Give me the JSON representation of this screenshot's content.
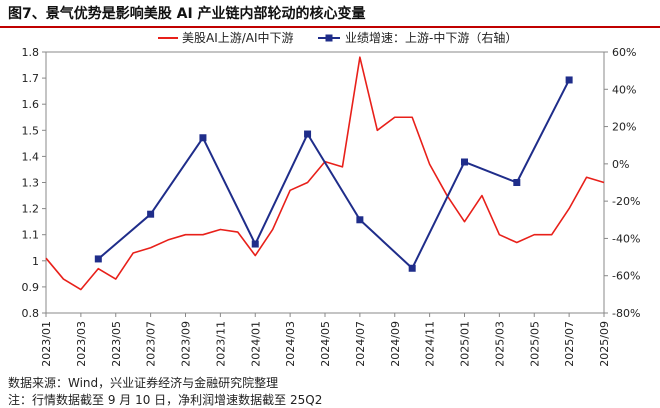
{
  "title": "图7、景气优势是影响美股 AI 产业链内部轮动的核心变量",
  "footer": {
    "source": "数据来源：Wind，兴业证券经济与金融研究院整理",
    "note": "注：行情数据截至 9 月 10 日，净利润增速数据截至 25Q2"
  },
  "colors": {
    "line": "#e8201a",
    "series2": "#1f2d8a",
    "title_rule": "#c00000"
  },
  "chart_data": {
    "type": "line",
    "x_tick_labels": [
      "2023/01",
      "2023/03",
      "2023/05",
      "2023/07",
      "2023/09",
      "2023/11",
      "2024/01",
      "2024/03",
      "2024/05",
      "2024/07",
      "2024/09",
      "2024/11",
      "2025/01",
      "2025/03",
      "2025/05",
      "2025/07",
      "2025/09"
    ],
    "x_range": [
      "2023/01",
      "2025/09"
    ],
    "y_left": {
      "range": [
        0.8,
        1.8
      ],
      "ticks": [
        "0.8",
        "0.9",
        "1",
        "1.1",
        "1.2",
        "1.3",
        "1.4",
        "1.5",
        "1.6",
        "1.7",
        "1.8"
      ]
    },
    "y_right": {
      "range": [
        -80,
        60
      ],
      "ticks": [
        "60%",
        "40%",
        "20%",
        "0%",
        "-20%",
        "-40%",
        "-60%",
        "-80%"
      ]
    },
    "legend_position": "top-center",
    "series": [
      {
        "name": "美股AI上游/AI中下游",
        "axis": "left",
        "style": "line",
        "x": [
          "2023/01",
          "2023/02",
          "2023/03",
          "2023/04",
          "2023/05",
          "2023/06",
          "2023/07",
          "2023/08",
          "2023/09",
          "2023/10",
          "2023/11",
          "2023/12",
          "2024/01",
          "2024/02",
          "2024/03",
          "2024/04",
          "2024/05",
          "2024/06",
          "2024/07",
          "2024/08",
          "2024/09",
          "2024/10",
          "2024/11",
          "2024/12",
          "2025/01",
          "2025/02",
          "2025/03",
          "2025/04",
          "2025/05",
          "2025/06",
          "2025/07",
          "2025/08",
          "2025/09"
        ],
        "values": [
          1.01,
          0.93,
          0.89,
          0.97,
          0.93,
          1.03,
          1.05,
          1.08,
          1.1,
          1.1,
          1.12,
          1.11,
          1.02,
          1.12,
          1.27,
          1.3,
          1.38,
          1.36,
          1.78,
          1.5,
          1.55,
          1.55,
          1.37,
          1.25,
          1.15,
          1.25,
          1.1,
          1.07,
          1.1,
          1.1,
          1.2,
          1.32,
          1.3
        ]
      },
      {
        "name": "业绩增速：上游-中下游（右轴）",
        "axis": "right",
        "style": "line-markers",
        "x": [
          "2023/04",
          "2023/07",
          "2023/10",
          "2024/01",
          "2024/04",
          "2024/07",
          "2024/10",
          "2025/01",
          "2025/04",
          "2025/07"
        ],
        "values": [
          -51,
          -27,
          14,
          -43,
          16,
          -30,
          -56,
          1,
          -10,
          45
        ]
      }
    ]
  }
}
